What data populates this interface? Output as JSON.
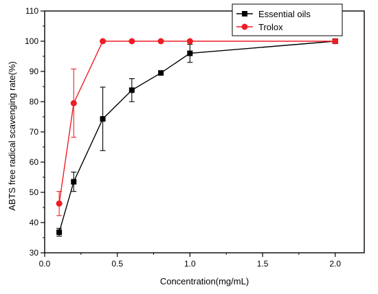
{
  "chart_data": {
    "type": "line",
    "xlabel": "Concentration(mg/mL)",
    "ylabel": "ABTS free radical scavenging rate(%)",
    "xlim": [
      0.0,
      2.2
    ],
    "ylim": [
      30,
      110
    ],
    "xticks": [
      0.0,
      0.5,
      1.0,
      1.5,
      2.0
    ],
    "xtick_labels": [
      "0.0",
      "0.5",
      "1.0",
      "1.5",
      "2.0"
    ],
    "yticks": [
      30,
      40,
      50,
      60,
      70,
      80,
      90,
      100,
      110
    ],
    "ytick_labels": [
      "30",
      "40",
      "50",
      "60",
      "70",
      "80",
      "90",
      "100",
      "110"
    ],
    "grid": false,
    "legend_position": "top-right",
    "series": [
      {
        "name": "Essential oils",
        "color": "#000000",
        "marker": "square",
        "x": [
          0.1,
          0.2,
          0.4,
          0.6,
          0.8,
          1.0,
          2.0
        ],
        "y": [
          36.8,
          53.5,
          74.3,
          83.8,
          89.5,
          96.0,
          100.0
        ],
        "error": [
          1.3,
          3.2,
          10.5,
          3.8,
          0.6,
          3.0,
          0.3
        ]
      },
      {
        "name": "Trolox",
        "color": "#ee1c24",
        "marker": "circle",
        "x": [
          0.1,
          0.2,
          0.4,
          0.6,
          0.8,
          1.0,
          2.0
        ],
        "y": [
          46.3,
          79.5,
          100.0,
          100.0,
          100.0,
          100.0,
          100.0
        ],
        "error": [
          4.0,
          11.3,
          0.3,
          0.3,
          0.3,
          0.3,
          0.3
        ]
      }
    ]
  }
}
